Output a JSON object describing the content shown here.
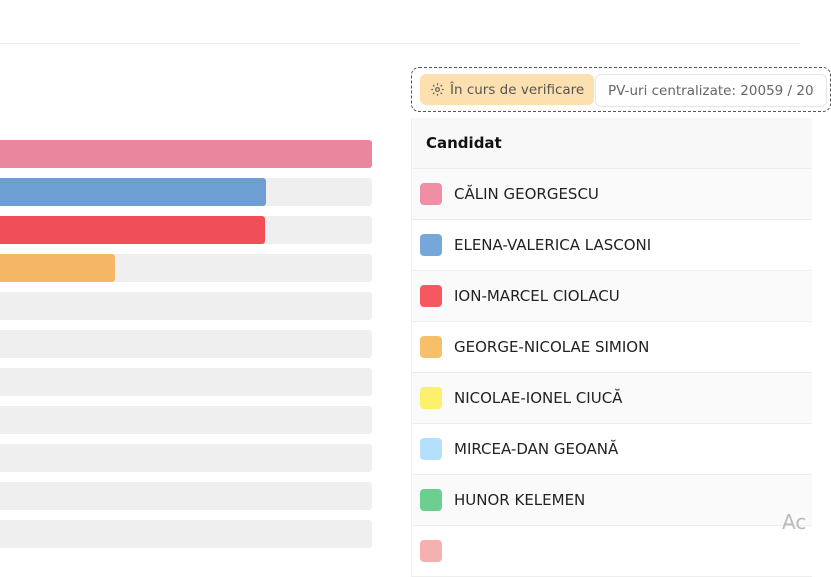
{
  "status": {
    "badge_label": "În curs de verificare",
    "badge_icon": "gear-icon",
    "pv_label": "PV-uri centralizate: 20059 / 20"
  },
  "table": {
    "header": "Candidat",
    "rows": [
      {
        "name": "CĂLIN GEORGESCU",
        "color": "#f08ea6"
      },
      {
        "name": "ELENA-VALERICA LASCONI",
        "color": "#76a7db"
      },
      {
        "name": "ION-MARCEL CIOLACU",
        "color": "#f5585f"
      },
      {
        "name": "GEORGE-NICOLAE SIMION",
        "color": "#f8bf6a"
      },
      {
        "name": "NICOLAE-IONEL CIUCĂ",
        "color": "#fdf06a"
      },
      {
        "name": "MIRCEA-DAN GEOANĂ",
        "color": "#b5e0fb"
      },
      {
        "name": "HUNOR KELEMEN",
        "color": "#6ccf90"
      },
      {
        "name": "",
        "color": "#f5b0b0"
      }
    ]
  },
  "bars": [
    {
      "color": "#e8879e",
      "fill_pct": 100
    },
    {
      "color": "#6e9fd2",
      "fill_pct": 71.5
    },
    {
      "color": "#f04f57",
      "fill_pct": 71.2
    },
    {
      "color": "#f4b765",
      "fill_pct": 31
    },
    {
      "color": "#efefef",
      "fill_pct": 0
    },
    {
      "color": "#efefef",
      "fill_pct": 0
    },
    {
      "color": "#efefef",
      "fill_pct": 0
    },
    {
      "color": "#efefef",
      "fill_pct": 0
    },
    {
      "color": "#efefef",
      "fill_pct": 0
    },
    {
      "color": "#efefef",
      "fill_pct": 0
    },
    {
      "color": "#efefef",
      "fill_pct": 0
    }
  ],
  "watermark": "Ac"
}
